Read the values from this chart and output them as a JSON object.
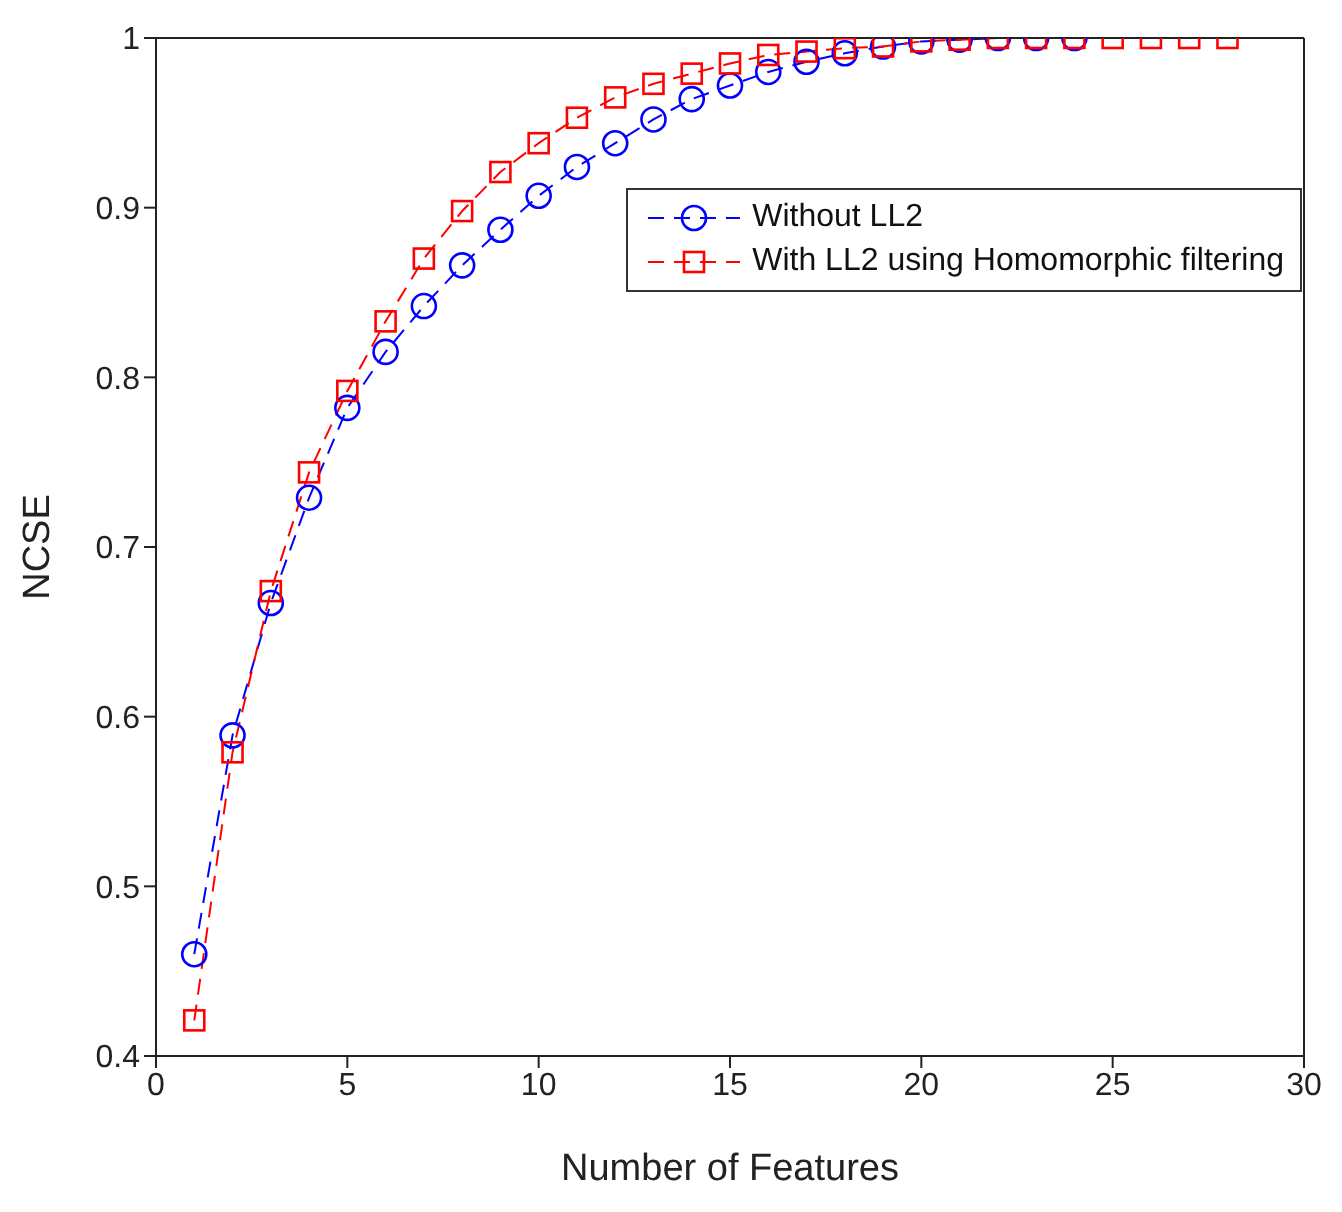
{
  "chart_data": {
    "type": "line",
    "xlabel": "Number of Features",
    "ylabel": "NCSE",
    "xlim": [
      0,
      30
    ],
    "xticks": [
      0,
      5,
      10,
      15,
      20,
      25,
      30
    ],
    "ylim": [
      0.4,
      1
    ],
    "yticks": [
      0.4,
      0.5,
      0.6,
      0.7,
      0.8,
      0.9,
      1
    ],
    "grid": false,
    "legend": "top right",
    "line_style": "dashed",
    "series": [
      {
        "name": "Without LL2",
        "color": "#0000ff",
        "marker": "circle",
        "x": [
          1,
          2,
          3,
          4,
          5,
          6,
          7,
          8,
          9,
          10,
          11,
          12,
          13,
          14,
          15,
          16,
          17,
          18,
          19,
          20,
          21,
          22,
          23,
          24
        ],
        "values": [
          0.46,
          0.589,
          0.667,
          0.729,
          0.782,
          0.815,
          0.842,
          0.866,
          0.887,
          0.907,
          0.924,
          0.938,
          0.952,
          0.964,
          0.972,
          0.98,
          0.986,
          0.991,
          0.995,
          0.998,
          0.999,
          1,
          1,
          1
        ]
      },
      {
        "name": "With LL2 using Homomorphic filtering",
        "color": "#ff0000",
        "marker": "square",
        "x": [
          1,
          2,
          3,
          4,
          5,
          6,
          7,
          8,
          9,
          10,
          11,
          12,
          13,
          14,
          15,
          16,
          17,
          18,
          19,
          20,
          21,
          22,
          23,
          24,
          25,
          26,
          27,
          28
        ],
        "values": [
          0.421,
          0.579,
          0.674,
          0.744,
          0.792,
          0.833,
          0.87,
          0.898,
          0.921,
          0.938,
          0.953,
          0.965,
          0.973,
          0.979,
          0.985,
          0.99,
          0.992,
          0.994,
          0.995,
          0.998,
          0.999,
          1,
          1,
          1,
          1,
          1,
          1,
          1
        ]
      }
    ]
  }
}
